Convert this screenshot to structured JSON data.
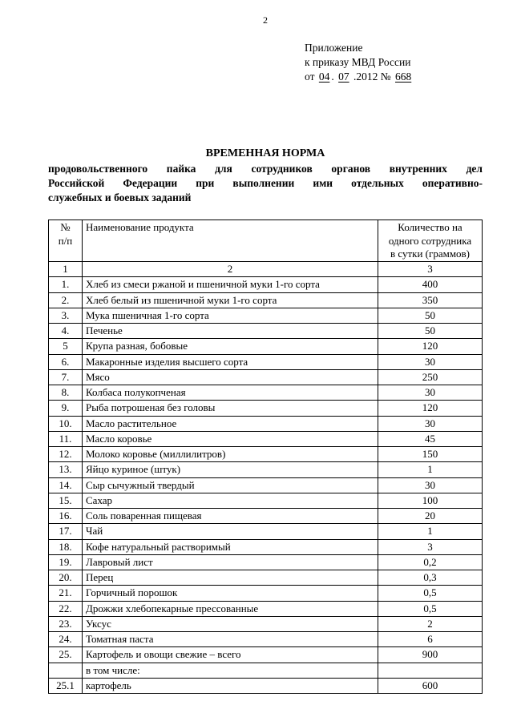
{
  "page_number": "2",
  "header": {
    "line1": "Приложение",
    "line2": "к приказу МВД России",
    "line3_prefix": "от",
    "date_day": "04",
    "date_sep": ".",
    "date_month": "07",
    "date_year": ".2012 №",
    "order_no": "668"
  },
  "title": {
    "main": "ВРЕМЕННАЯ НОРМА",
    "sub1": "продовольственного пайка для сотрудников органов внутренних дел",
    "sub2": "Российской Федерации при выполнении ими отдельных оперативно-",
    "sub3": "служебных и боевых заданий"
  },
  "table": {
    "head": {
      "col1a": "№",
      "col1b": "п/п",
      "col2": "Наименование продукта",
      "col3a": "Количество на",
      "col3b": "одного сотрудника",
      "col3c": "в сутки (граммов)"
    },
    "subhead": {
      "c1": "1",
      "c2": "2",
      "c3": "3"
    },
    "rows": [
      {
        "n": "1.",
        "name": "Хлеб из смеси ржаной и пшеничной муки 1-го сорта",
        "qty": "400",
        "just": true
      },
      {
        "n": "2.",
        "name": "Хлеб белый из пшеничной муки 1-го сорта",
        "qty": "350"
      },
      {
        "n": "3.",
        "name": "Мука пшеничная 1-го сорта",
        "qty": "50"
      },
      {
        "n": "4.",
        "name": "Печенье",
        "qty": "50"
      },
      {
        "n": "5",
        "name": "Крупа разная, бобовые",
        "qty": "120"
      },
      {
        "n": "6.",
        "name": "Макаронные изделия высшего сорта",
        "qty": "30"
      },
      {
        "n": "7.",
        "name": "Мясо",
        "qty": "250"
      },
      {
        "n": "8.",
        "name": "Колбаса полукопченая",
        "qty": "30"
      },
      {
        "n": "9.",
        "name": "Рыба потрошеная без головы",
        "qty": "120"
      },
      {
        "n": "10.",
        "name": "Масло растительное",
        "qty": "30"
      },
      {
        "n": "11.",
        "name": "Масло коровье",
        "qty": "45"
      },
      {
        "n": "12.",
        "name": "Молоко коровье (миллилитров)",
        "qty": "150"
      },
      {
        "n": "13.",
        "name": "Яйцо куриное (штук)",
        "qty": "1"
      },
      {
        "n": "14.",
        "name": "Сыр сычужный твердый",
        "qty": "30"
      },
      {
        "n": "15.",
        "name": "Сахар",
        "qty": "100"
      },
      {
        "n": "16.",
        "name": "Соль поваренная пищевая",
        "qty": "20"
      },
      {
        "n": "17.",
        "name": "Чай",
        "qty": "1"
      },
      {
        "n": "18.",
        "name": "Кофе натуральный растворимый",
        "qty": "3"
      },
      {
        "n": "19.",
        "name": "Лавровый лист",
        "qty": "0,2"
      },
      {
        "n": "20.",
        "name": "Перец",
        "qty": "0,3"
      },
      {
        "n": "21.",
        "name": "Горчичный порошок",
        "qty": "0,5"
      },
      {
        "n": "22.",
        "name": "Дрожжи хлебопекарные прессованные",
        "qty": "0,5"
      },
      {
        "n": "23.",
        "name": "Уксус",
        "qty": "2"
      },
      {
        "n": "24.",
        "name": "Томатная паста",
        "qty": "6"
      },
      {
        "n": "25.",
        "name": "Картофель и овощи свежие – всего",
        "qty": "900"
      },
      {
        "n": "",
        "name": "в том числе:",
        "qty": ""
      },
      {
        "n": "25.1",
        "name": "картофель",
        "qty": "600"
      }
    ]
  }
}
